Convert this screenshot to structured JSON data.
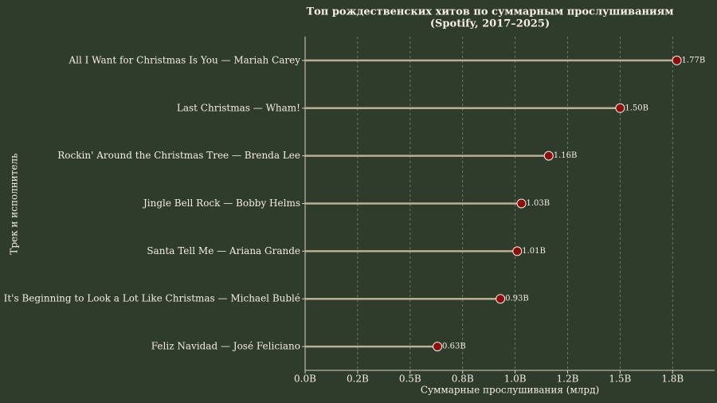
{
  "chart_data": {
    "type": "lollipop",
    "title": "Топ рождественских хитов по суммарным прослушиваниям",
    "subtitle": "(Spotify, 2017–2025)",
    "x_label": "Суммарные прослушивания (млрд)",
    "y_label": "Трек и исполнитель",
    "categories": [
      "All I Want for Christmas Is You — Mariah Carey",
      "Last Christmas — Wham!",
      "Rockin' Around the Christmas Tree — Brenda Lee",
      "Jingle Bell Rock — Bobby Helms",
      "Santa Tell Me — Ariana Grande",
      "It's Beginning to Look a Lot Like Christmas — Michael Bublé",
      "Feliz Navidad — José Feliciano"
    ],
    "values": [
      1.77,
      1.5,
      1.16,
      1.03,
      1.01,
      0.93,
      0.63
    ],
    "value_labels": [
      "1.77B",
      "1.50B",
      "1.16B",
      "1.03B",
      "1.01B",
      "0.93B",
      "0.63B"
    ],
    "color": "#8b0f0f",
    "stem_color": "#b8b195",
    "xlim": [
      0,
      1.95
    ],
    "xticks": [
      {
        "value": 0,
        "label": "0.0B"
      },
      {
        "value": 0.25,
        "label": "0.2B"
      },
      {
        "value": 0.5,
        "label": "0.5B"
      },
      {
        "value": 0.75,
        "label": "0.8B"
      },
      {
        "value": 1.0,
        "label": "1.0B"
      },
      {
        "value": 1.25,
        "label": "1.2B"
      },
      {
        "value": 1.5,
        "label": "1.5B"
      },
      {
        "value": 1.75,
        "label": "1.8B"
      }
    ],
    "grid": true
  }
}
